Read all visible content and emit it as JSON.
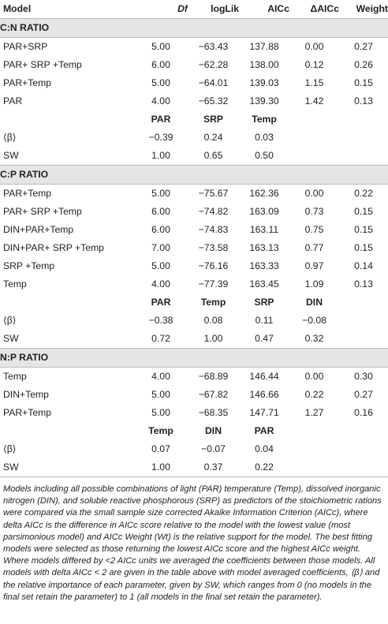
{
  "header": [
    "Model",
    "Df",
    "logLik",
    "AICc",
    "ΔAICc",
    "Weight"
  ],
  "sections": [
    {
      "title": "C:N RATIO",
      "rows": [
        [
          "PAR+SRP",
          "5.00",
          "−63.43",
          "137.88",
          "0.00",
          "0.27"
        ],
        [
          "PAR+ SRP +Temp",
          "6.00",
          "−62.28",
          "138.00",
          "0.12",
          "0.26"
        ],
        [
          "PAR+Temp",
          "5.00",
          "−64.01",
          "139.03",
          "1.15",
          "0.15"
        ],
        [
          "PAR",
          "4.00",
          "−65.32",
          "139.30",
          "1.42",
          "0.13"
        ]
      ],
      "param_header": [
        "",
        "PAR",
        "SRP",
        "Temp",
        "",
        ""
      ],
      "param_rows": [
        [
          "⟨β⟩",
          "−0.39",
          "0.24",
          "0.03",
          "",
          ""
        ],
        [
          "SW",
          "1.00",
          "0.65",
          "0.50",
          "",
          ""
        ]
      ]
    },
    {
      "title": "C:P RATIO",
      "rows": [
        [
          "PAR+Temp",
          "5.00",
          "−75.67",
          "162.36",
          "0.00",
          "0.22"
        ],
        [
          "PAR+ SRP +Temp",
          "6.00",
          "−74.82",
          "163.09",
          "0.73",
          "0.15"
        ],
        [
          "DIN+PAR+Temp",
          "6.00",
          "−74.83",
          "163.11",
          "0.75",
          "0.15"
        ],
        [
          "DIN+PAR+ SRP +Temp",
          "7.00",
          "−73.58",
          "163.13",
          "0.77",
          "0.15"
        ],
        [
          "SRP +Temp",
          "5.00",
          "−76.16",
          "163.33",
          "0.97",
          "0.14"
        ],
        [
          "Temp",
          "4.00",
          "−77.39",
          "163.45",
          "1.09",
          "0.13"
        ]
      ],
      "param_header": [
        "",
        "PAR",
        "Temp",
        "SRP",
        "DIN",
        ""
      ],
      "param_rows": [
        [
          "⟨β⟩",
          "−0.38",
          "0.08",
          "0.11",
          "−0.08",
          ""
        ],
        [
          "SW",
          "0.72",
          "1.00",
          "0.47",
          "0.32",
          ""
        ]
      ]
    },
    {
      "title": "N:P RATIO",
      "rows": [
        [
          "Temp",
          "4.00",
          "−68.89",
          "146.44",
          "0.00",
          "0.30"
        ],
        [
          "DIN+Temp",
          "5.00",
          "−67.82",
          "146.66",
          "0.22",
          "0.27"
        ],
        [
          "PAR+Temp",
          "5.00",
          "−68.35",
          "147.71",
          "1.27",
          "0.16"
        ]
      ],
      "param_header": [
        "",
        "Temp",
        "DIN",
        "PAR",
        "",
        ""
      ],
      "param_rows": [
        [
          "⟨β⟩",
          "0.07",
          "−0.07",
          "0.04",
          "",
          ""
        ],
        [
          "SW",
          "1.00",
          "0.37",
          "0.22",
          "",
          ""
        ]
      ]
    }
  ],
  "footnote": "Models including all possible combinations of light (PAR) temperature (Temp), dissolved inorganic nitrogen (DIN), and soluble reactive phosphorous (SRP) as predictors of the stoichiometric rations were compared via the small sample size corrected Akaike Information Criterion (AICc), where delta AICc is the difference in AICc score relative to the model with the lowest value (most parsimonious model) and AICc Weight (Wt) is the relative support for the model. The best fitting models were selected as those returning the lowest AICc score and the highest AICc weight. Where models differed by <2 AICc units we averaged the coefficients between those models. All models with delta AICc < 2 are given in the table above with model averaged coefficients, ⟨β⟩ and the relative importance of each parameter, given by SW, which ranges from 0 (no models in the final set retain the parameter) to 1 (all models in the final set retain the parameter)."
}
